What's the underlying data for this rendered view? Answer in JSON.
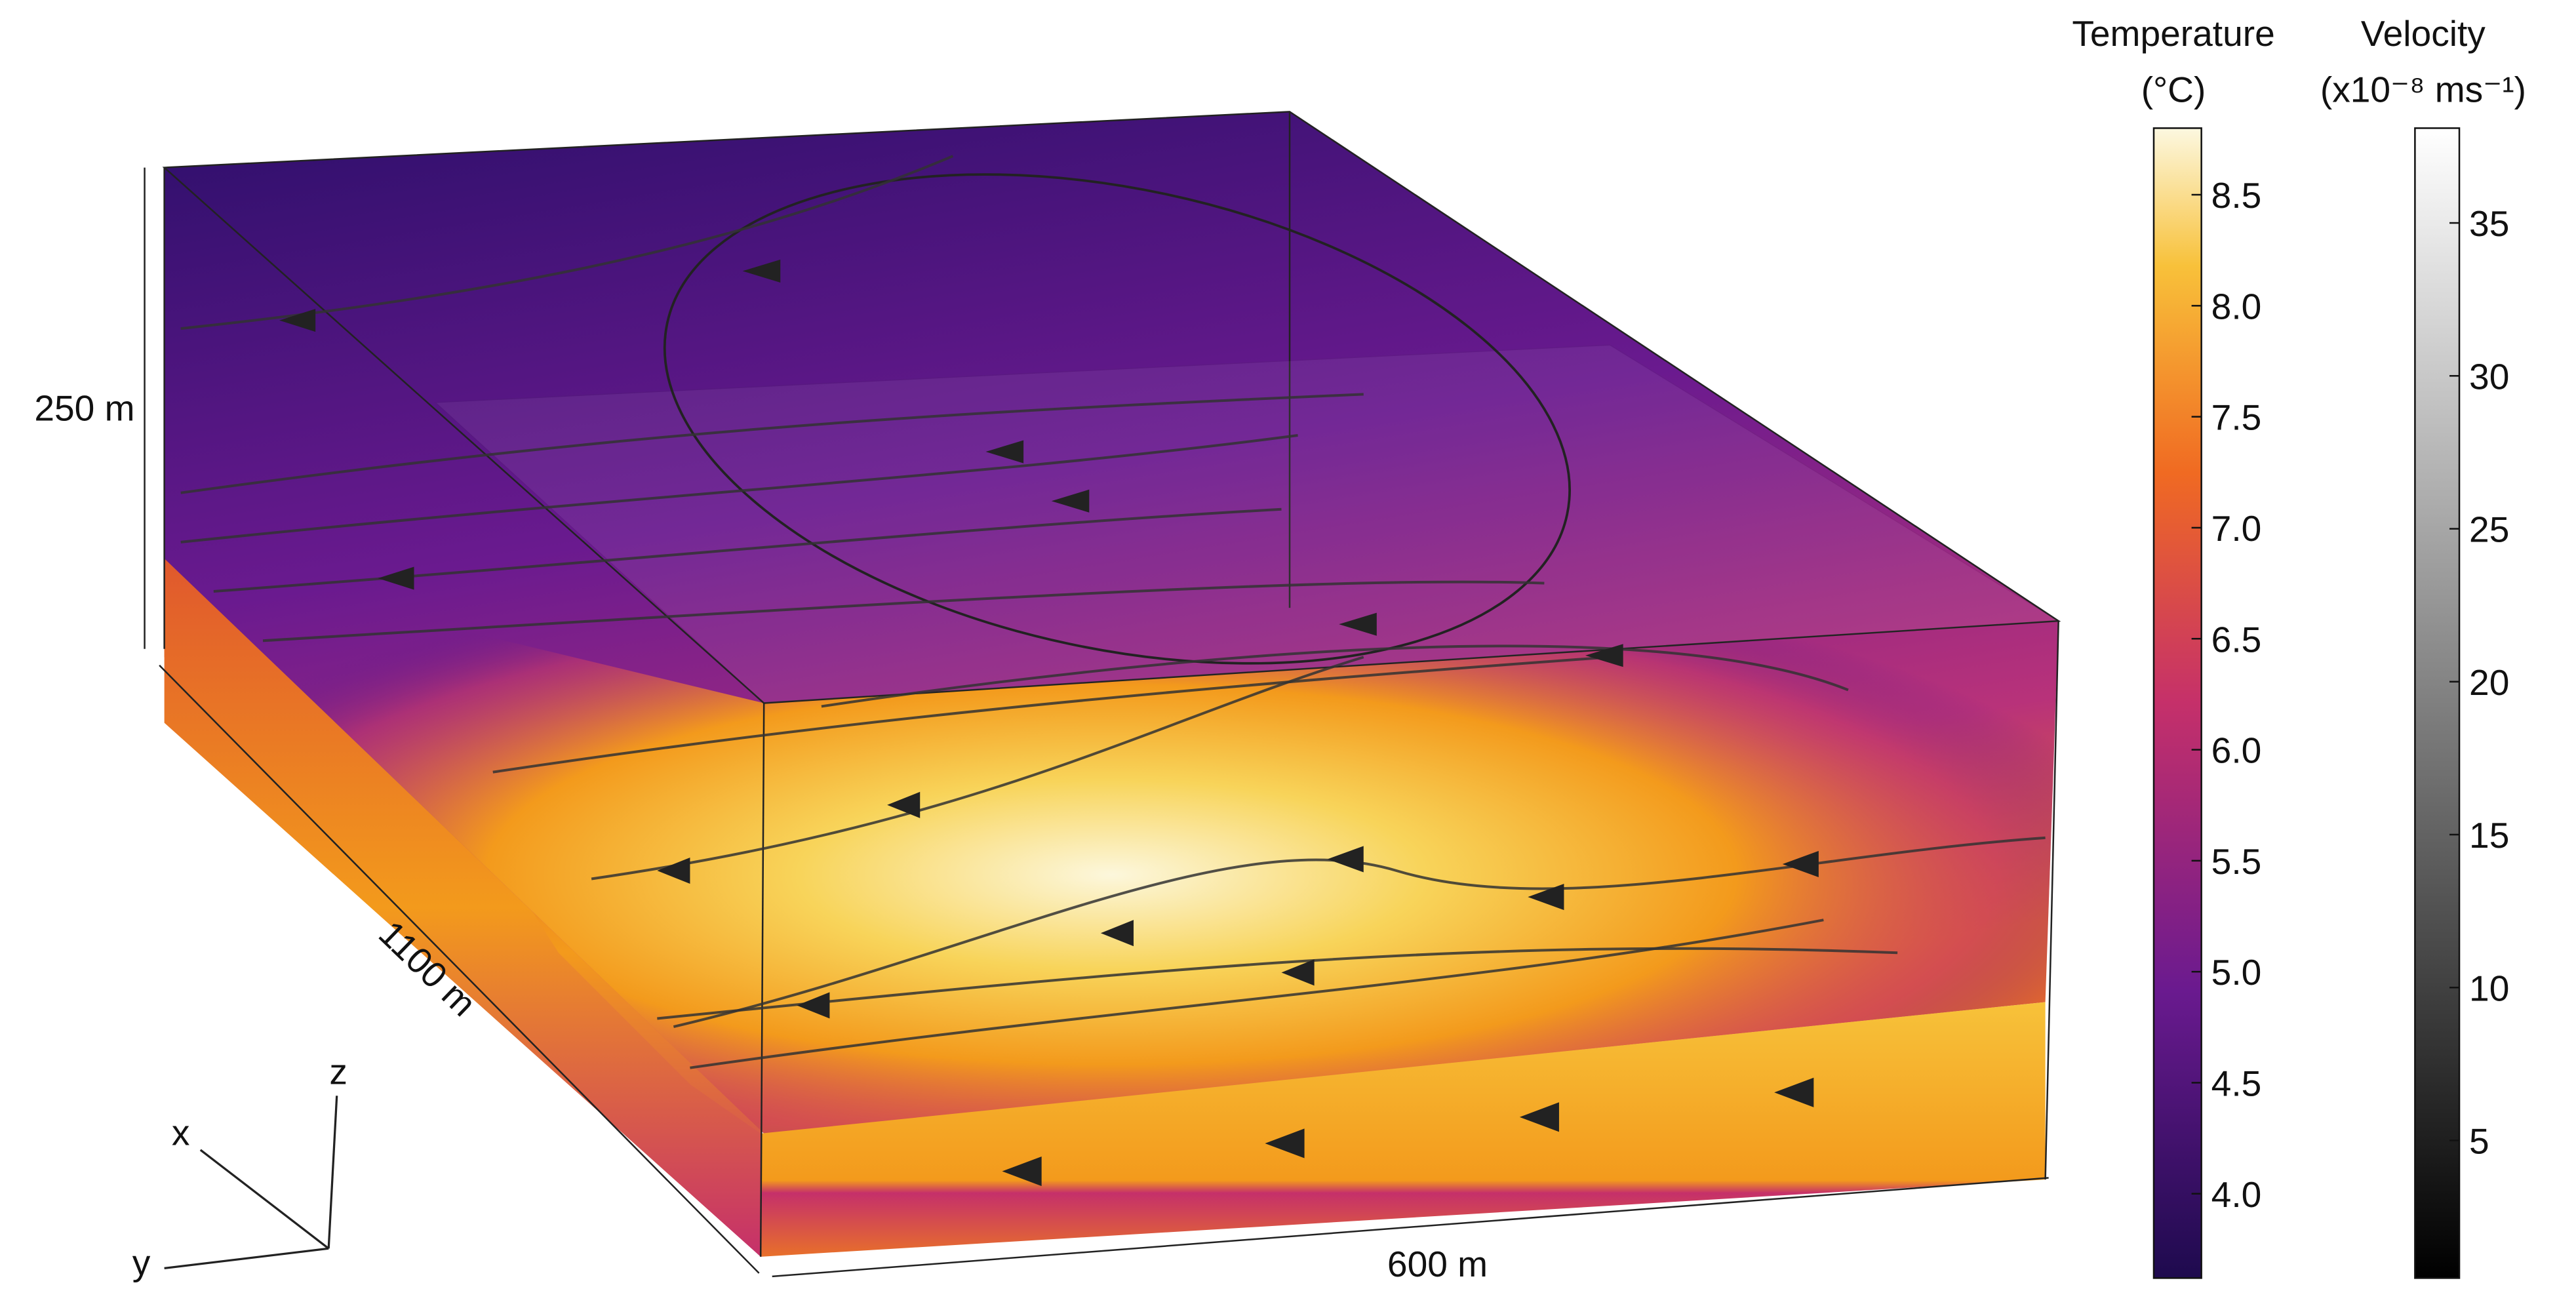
{
  "dimensions": {
    "height": "250 m",
    "length": "1100 m",
    "width": "600 m"
  },
  "axes": {
    "x": "x",
    "y": "y",
    "z": "z"
  },
  "temperature_colorbar": {
    "title": "Temperature",
    "unit": "(°C)",
    "lim": [
      3.62,
      8.8
    ],
    "ticks": [
      {
        "value": 4,
        "label": "4.0"
      },
      4.5,
      {
        "value": 5,
        "label": "5.0"
      },
      5.5,
      {
        "value": 6,
        "label": "6.0"
      },
      6.5,
      {
        "value": 7,
        "label": "7.0"
      },
      7.5,
      {
        "value": 8,
        "label": "8.0"
      },
      8.5
    ]
  },
  "velocity_colorbar": {
    "title": "Velocity",
    "unit": "(x10⁻⁸ ms⁻¹)",
    "lim": [
      0.5,
      38.1
    ],
    "ticks": [
      5,
      10,
      15,
      20,
      25,
      30,
      35
    ]
  }
}
